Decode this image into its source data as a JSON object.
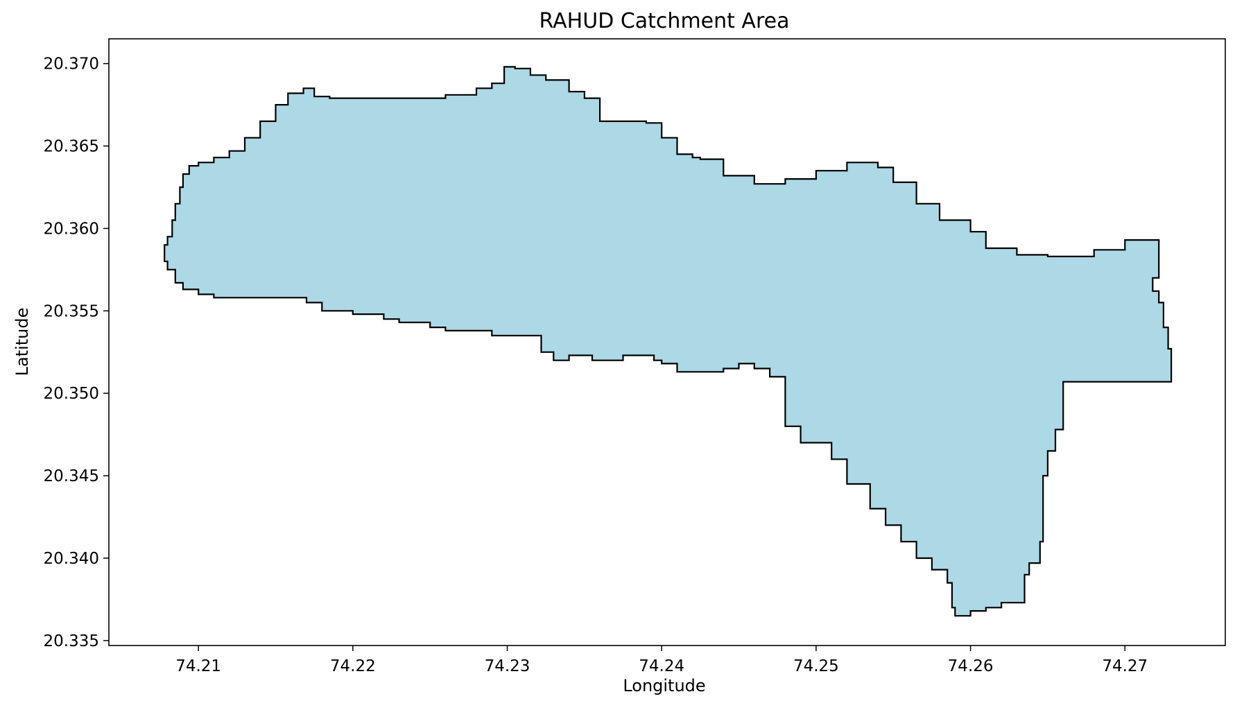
{
  "chart_data": {
    "type": "area",
    "title": "RAHUD Catchment Area",
    "xlabel": "Longitude",
    "ylabel": "Latitude",
    "xlim": [
      74.2042,
      74.2765
    ],
    "ylim": [
      20.3347,
      20.3715
    ],
    "xticks": [
      74.21,
      74.22,
      74.23,
      74.24,
      74.25,
      74.26,
      74.27
    ],
    "xtick_labels": [
      "74.21",
      "74.22",
      "74.23",
      "74.24",
      "74.25",
      "74.26",
      "74.27"
    ],
    "yticks": [
      20.335,
      20.34,
      20.345,
      20.35,
      20.355,
      20.36,
      20.365,
      20.37
    ],
    "ytick_labels": [
      "20.335",
      "20.340",
      "20.345",
      "20.350",
      "20.355",
      "20.360",
      "20.365",
      "20.370"
    ],
    "grid": false,
    "fill_color": "#add8e6",
    "edge_color": "#000000",
    "boundary": [
      [
        74.2078,
        20.359
      ],
      [
        74.208,
        20.3595
      ],
      [
        74.2083,
        20.3605
      ],
      [
        74.2085,
        20.3615
      ],
      [
        74.2088,
        20.3625
      ],
      [
        74.209,
        20.3633
      ],
      [
        74.2094,
        20.3638
      ],
      [
        74.21,
        20.364
      ],
      [
        74.211,
        20.3643
      ],
      [
        74.212,
        20.3647
      ],
      [
        74.213,
        20.3655
      ],
      [
        74.214,
        20.3665
      ],
      [
        74.215,
        20.3675
      ],
      [
        74.2158,
        20.3682
      ],
      [
        74.2168,
        20.3685
      ],
      [
        74.2175,
        20.368
      ],
      [
        74.2185,
        20.3679
      ],
      [
        74.225,
        20.3679
      ],
      [
        74.226,
        20.3681
      ],
      [
        74.228,
        20.3685
      ],
      [
        74.229,
        20.3688
      ],
      [
        74.2298,
        20.3698
      ],
      [
        74.2305,
        20.3697
      ],
      [
        74.2315,
        20.3693
      ],
      [
        74.2325,
        20.369
      ],
      [
        74.234,
        20.3683
      ],
      [
        74.235,
        20.3679
      ],
      [
        74.236,
        20.3665
      ],
      [
        74.238,
        20.3665
      ],
      [
        74.239,
        20.3664
      ],
      [
        74.24,
        20.3655
      ],
      [
        74.241,
        20.3645
      ],
      [
        74.242,
        20.3643
      ],
      [
        74.2425,
        20.3642
      ],
      [
        74.244,
        20.3632
      ],
      [
        74.246,
        20.3627
      ],
      [
        74.248,
        20.363
      ],
      [
        74.25,
        20.3635
      ],
      [
        74.252,
        20.364
      ],
      [
        74.254,
        20.3637
      ],
      [
        74.255,
        20.3628
      ],
      [
        74.2565,
        20.3615
      ],
      [
        74.258,
        20.3605
      ],
      [
        74.26,
        20.3598
      ],
      [
        74.261,
        20.3588
      ],
      [
        74.263,
        20.3584
      ],
      [
        74.265,
        20.3583
      ],
      [
        74.267,
        20.3583
      ],
      [
        74.268,
        20.3587
      ],
      [
        74.27,
        20.3593
      ],
      [
        74.272,
        20.3593
      ],
      [
        74.2722,
        20.357
      ],
      [
        74.2718,
        20.3562
      ],
      [
        74.2722,
        20.3555
      ],
      [
        74.2725,
        20.354
      ],
      [
        74.2728,
        20.3527
      ],
      [
        74.273,
        20.3518
      ],
      [
        74.273,
        20.3507
      ],
      [
        74.27,
        20.3507
      ],
      [
        74.269,
        20.3507
      ],
      [
        74.267,
        20.3507
      ],
      [
        74.266,
        20.3503
      ],
      [
        74.266,
        20.349
      ],
      [
        74.266,
        20.3478
      ],
      [
        74.2655,
        20.3465
      ],
      [
        74.265,
        20.345
      ],
      [
        74.2647,
        20.3435
      ],
      [
        74.2647,
        20.341
      ],
      [
        74.2645,
        20.3397
      ],
      [
        74.2638,
        20.339
      ],
      [
        74.2635,
        20.3373
      ],
      [
        74.262,
        20.337
      ],
      [
        74.261,
        20.3368
      ],
      [
        74.26,
        20.3365
      ],
      [
        74.259,
        20.337
      ],
      [
        74.2588,
        20.3385
      ],
      [
        74.2585,
        20.3393
      ],
      [
        74.2575,
        20.34
      ],
      [
        74.2565,
        20.341
      ],
      [
        74.2555,
        20.342
      ],
      [
        74.2545,
        20.343
      ],
      [
        74.2535,
        20.3445
      ],
      [
        74.252,
        20.346
      ],
      [
        74.251,
        20.347
      ],
      [
        74.249,
        20.348
      ],
      [
        74.248,
        20.3495
      ],
      [
        74.248,
        20.351
      ],
      [
        74.247,
        20.3515
      ],
      [
        74.246,
        20.3518
      ],
      [
        74.245,
        20.3515
      ],
      [
        74.244,
        20.3513
      ],
      [
        74.242,
        20.3513
      ],
      [
        74.241,
        20.3518
      ],
      [
        74.24,
        20.352
      ],
      [
        74.2395,
        20.3523
      ],
      [
        74.2375,
        20.352
      ],
      [
        74.2355,
        20.3523
      ],
      [
        74.234,
        20.352
      ],
      [
        74.233,
        20.3525
      ],
      [
        74.2322,
        20.3535
      ],
      [
        74.23,
        20.3535
      ],
      [
        74.229,
        20.3538
      ],
      [
        74.227,
        20.3538
      ],
      [
        74.226,
        20.354
      ],
      [
        74.225,
        20.3543
      ],
      [
        74.223,
        20.3545
      ],
      [
        74.222,
        20.3548
      ],
      [
        74.22,
        20.355
      ],
      [
        74.218,
        20.3555
      ],
      [
        74.217,
        20.3558
      ],
      [
        74.214,
        20.3558
      ],
      [
        74.211,
        20.356
      ],
      [
        74.21,
        20.3563
      ],
      [
        74.209,
        20.3567
      ],
      [
        74.2085,
        20.3575
      ],
      [
        74.208,
        20.358
      ],
      [
        74.2078,
        20.359
      ]
    ]
  }
}
